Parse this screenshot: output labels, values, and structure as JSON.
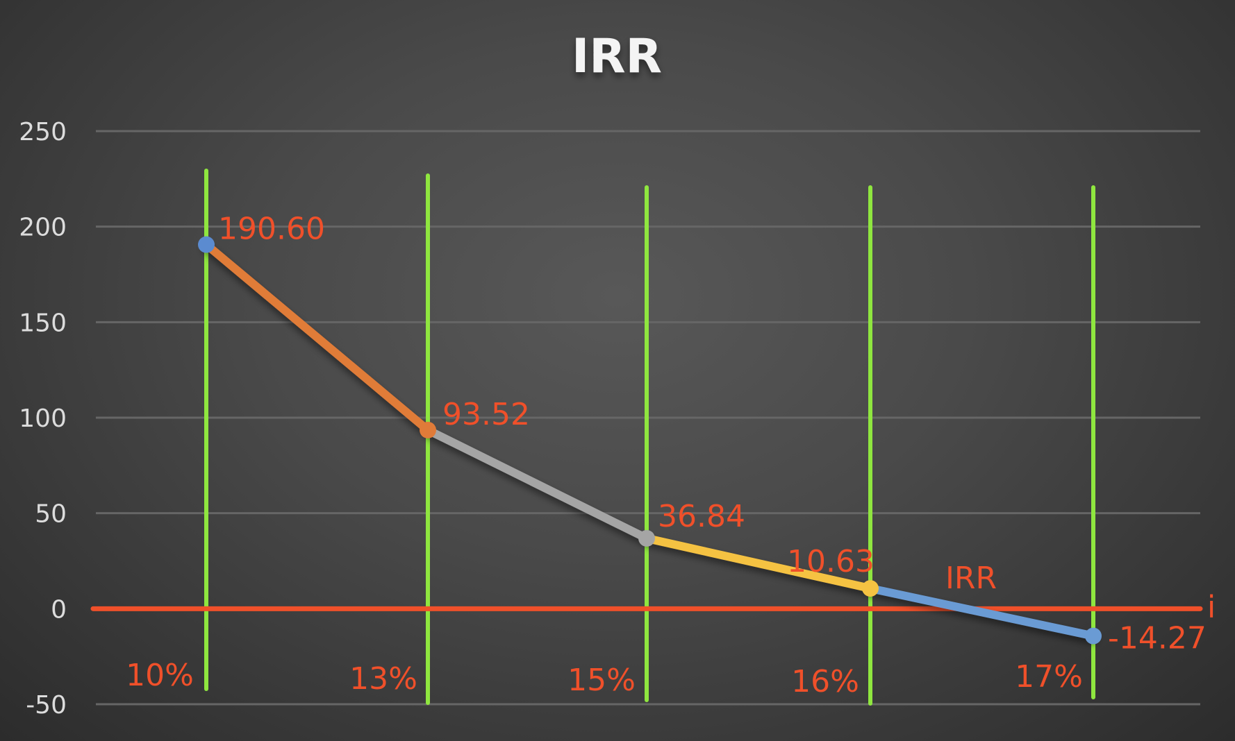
{
  "chart_data": {
    "type": "line",
    "title": "IRR",
    "x_axis_label": "i",
    "categories": [
      "10%",
      "13%",
      "15%",
      "16%",
      "17%"
    ],
    "values": [
      190.6,
      93.52,
      36.84,
      10.63,
      -14.27
    ],
    "data_labels": [
      "190.60",
      "93.52",
      "36.84",
      "10.63",
      "-14.27"
    ],
    "annotation": "IRR",
    "ylim": [
      -50,
      250
    ],
    "yticks": [
      250,
      200,
      150,
      100,
      50,
      0,
      -50
    ],
    "grid": true,
    "segment_colors": [
      "#e07b39",
      "#a5a5a5",
      "#f5c242",
      "#6a9bd4"
    ],
    "point_colors": [
      "#5b8bd0",
      "#e07b39",
      "#a5a5a5",
      "#f5c242",
      "#6a9bd4"
    ],
    "zero_line_color": "#f0502a",
    "vertical_line_color": "#8fe63f",
    "label_color": "#f0502a"
  }
}
